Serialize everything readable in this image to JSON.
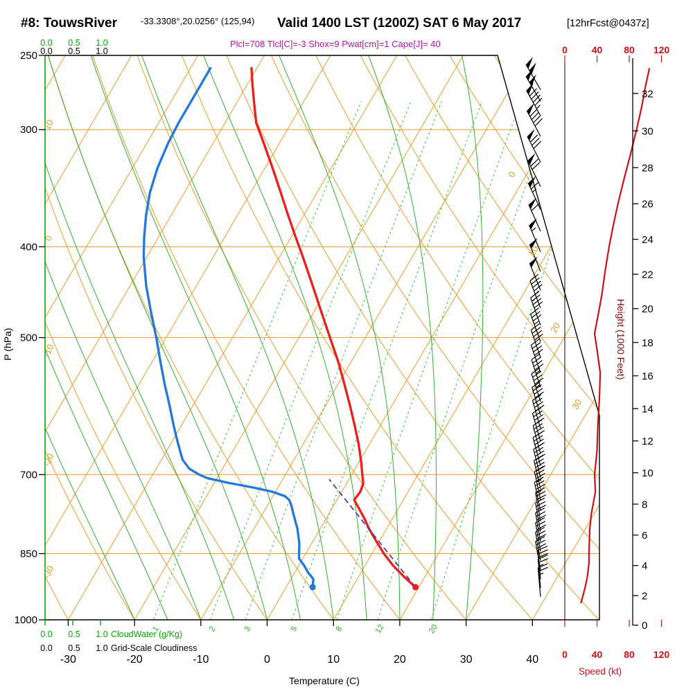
{
  "header": {
    "station_id": "#8: TouwsRiver",
    "coordinates": "-33.3308°,20.0256° (125,94)",
    "valid_time": "Valid 1400 LST (1200Z) SAT 6 May 2017",
    "forecast_tag": "[12hrFcst@0437z]",
    "indices_line": "Plcl=708 Tlcl[C]=-3 Shox=9 Pwat[cm]=1 Cape[J]= 40"
  },
  "axis_labels": {
    "pressure": "P (hPa)",
    "temperature": "Temperature (C)",
    "height": "Height (1000 Feet)",
    "speed": "Speed (kt)",
    "cloudwater": "CloudWater (g/Kg)",
    "cloudiness": "Grid-Scale Cloudiness"
  },
  "chart_data": {
    "type": "line",
    "variant": "skew-t log-p thermodynamic sounding with wind barbs and speed profile",
    "pressure_axis": {
      "label": "P (hPa)",
      "scale": "log",
      "range": [
        250,
        1000
      ],
      "ticks": [
        250,
        300,
        400,
        500,
        700,
        850,
        1000
      ]
    },
    "temperature_axis": {
      "label": "Temperature (C)",
      "skewed": true,
      "ticks": [
        -30,
        -20,
        -10,
        0,
        10,
        20,
        30,
        40
      ]
    },
    "height_axis": {
      "label": "Height (1000 Feet)",
      "ticks": [
        0,
        2,
        4,
        6,
        8,
        10,
        12,
        14,
        16,
        18,
        20,
        22,
        24,
        26,
        28,
        30,
        32
      ]
    },
    "speed_axis": {
      "label": "Speed (kt)",
      "ticks": [
        0,
        40,
        80,
        120
      ]
    },
    "cloud_scales": {
      "ticks": [
        "0.0",
        "0.5",
        "1.0"
      ],
      "cloudwater_label": "CloudWater (g/Kg)",
      "cloudiness_label": "Grid-Scale Cloudiness",
      "cloudwater_value_profile": 0
    },
    "mixing_ratio_lines_g_per_kg": [
      1,
      2,
      3,
      5,
      8,
      12,
      20
    ],
    "dry_adiabat_edge_labels_C": [
      10,
      0,
      -10,
      -20,
      -30
    ],
    "isotherm_edge_labels_C": [
      0,
      10,
      20,
      30
    ],
    "indices": {
      "Plcl_hPa": 708,
      "Tlcl_C": -3,
      "Showalter": 9,
      "Pwat_cm": 1,
      "Cape_J": 40
    },
    "temperature_profile_p_T": [
      [
        923,
        19.5
      ],
      [
        900,
        16.9
      ],
      [
        875,
        14.2
      ],
      [
        850,
        11.8
      ],
      [
        825,
        9.6
      ],
      [
        800,
        7.4
      ],
      [
        780,
        5.8
      ],
      [
        760,
        4.0
      ],
      [
        745,
        2.6
      ],
      [
        730,
        2.8
      ],
      [
        715,
        2.5
      ],
      [
        700,
        1.6
      ],
      [
        680,
        0.4
      ],
      [
        650,
        -1.6
      ],
      [
        620,
        -3.9
      ],
      [
        590,
        -6.4
      ],
      [
        560,
        -9.1
      ],
      [
        530,
        -12.0
      ],
      [
        500,
        -15.3
      ],
      [
        470,
        -18.8
      ],
      [
        440,
        -22.5
      ],
      [
        410,
        -26.5
      ],
      [
        390,
        -29.4
      ],
      [
        370,
        -32.4
      ],
      [
        350,
        -35.5
      ],
      [
        330,
        -38.8
      ],
      [
        310,
        -42.4
      ],
      [
        295,
        -45.3
      ],
      [
        280,
        -47.5
      ],
      [
        268,
        -49.3
      ],
      [
        258,
        -50.8
      ]
    ],
    "dewpoint_profile_p_T": [
      [
        923,
        4.0
      ],
      [
        905,
        3.4
      ],
      [
        890,
        2.0
      ],
      [
        875,
        0.8
      ],
      [
        860,
        -0.6
      ],
      [
        845,
        -1.2
      ],
      [
        830,
        -1.8
      ],
      [
        815,
        -2.6
      ],
      [
        800,
        -3.4
      ],
      [
        785,
        -4.4
      ],
      [
        770,
        -5.4
      ],
      [
        755,
        -6.4
      ],
      [
        745,
        -7.2
      ],
      [
        738,
        -8.2
      ],
      [
        730,
        -10.5
      ],
      [
        722,
        -14.0
      ],
      [
        714,
        -18.0
      ],
      [
        706,
        -21.5
      ],
      [
        700,
        -23.0
      ],
      [
        690,
        -25.0
      ],
      [
        675,
        -26.8
      ],
      [
        660,
        -28.0
      ],
      [
        640,
        -29.6
      ],
      [
        620,
        -31.2
      ],
      [
        590,
        -33.6
      ],
      [
        560,
        -36.2
      ],
      [
        530,
        -38.8
      ],
      [
        500,
        -41.5
      ],
      [
        470,
        -44.5
      ],
      [
        440,
        -47.6
      ],
      [
        410,
        -50.5
      ],
      [
        390,
        -52.2
      ],
      [
        370,
        -53.8
      ],
      [
        350,
        -55.2
      ],
      [
        330,
        -56.2
      ],
      [
        310,
        -56.8
      ],
      [
        295,
        -57.0
      ],
      [
        280,
        -57.0
      ],
      [
        268,
        -57.0
      ],
      [
        258,
        -57.0
      ]
    ],
    "parcel_path": {
      "p_start": 923,
      "t_start": 19.5,
      "p_lcl": 708,
      "t_lcl": -3
    },
    "wind_speed_profile_p_kt": [
      [
        960,
        20
      ],
      [
        925,
        25
      ],
      [
        900,
        28
      ],
      [
        870,
        30
      ],
      [
        850,
        30
      ],
      [
        800,
        31
      ],
      [
        770,
        33
      ],
      [
        730,
        38
      ],
      [
        700,
        37
      ],
      [
        660,
        40
      ],
      [
        620,
        41
      ],
      [
        580,
        43
      ],
      [
        545,
        44
      ],
      [
        515,
        40
      ],
      [
        495,
        37
      ],
      [
        470,
        42
      ],
      [
        450,
        46
      ],
      [
        425,
        50
      ],
      [
        400,
        55
      ],
      [
        380,
        60
      ],
      [
        360,
        66
      ],
      [
        340,
        73
      ],
      [
        320,
        81
      ],
      [
        300,
        89
      ],
      [
        285,
        95
      ],
      [
        270,
        100
      ],
      [
        258,
        105
      ]
    ],
    "wind_barbs_p_kt_dir": [
      [
        945,
        25,
        355
      ],
      [
        925,
        25,
        355
      ],
      [
        905,
        28,
        355
      ],
      [
        885,
        30,
        350
      ],
      [
        865,
        30,
        350
      ],
      [
        845,
        30,
        350
      ],
      [
        825,
        30,
        350
      ],
      [
        805,
        30,
        350
      ],
      [
        785,
        32,
        350
      ],
      [
        765,
        34,
        348
      ],
      [
        745,
        36,
        348
      ],
      [
        725,
        38,
        347
      ],
      [
        705,
        38,
        346
      ],
      [
        685,
        40,
        345
      ],
      [
        665,
        40,
        345
      ],
      [
        645,
        40,
        344
      ],
      [
        625,
        42,
        344
      ],
      [
        605,
        42,
        343
      ],
      [
        585,
        44,
        342
      ],
      [
        565,
        44,
        342
      ],
      [
        545,
        42,
        341
      ],
      [
        525,
        40,
        341
      ],
      [
        505,
        37,
        340
      ],
      [
        485,
        40,
        340
      ],
      [
        465,
        44,
        339
      ],
      [
        445,
        48,
        338
      ],
      [
        425,
        52,
        338
      ],
      [
        405,
        55,
        337
      ],
      [
        385,
        60,
        336
      ],
      [
        365,
        65,
        335
      ],
      [
        345,
        72,
        334
      ],
      [
        325,
        80,
        333
      ],
      [
        305,
        88,
        332
      ],
      [
        290,
        94,
        331
      ],
      [
        280,
        98,
        330
      ],
      [
        272,
        102,
        330
      ]
    ],
    "colors": {
      "grid_orange": "#E9A33C",
      "moist_green": "#2FAF2F",
      "mixratio_green": "#55C455",
      "axis_green": "#00AC00",
      "temperature_red": "#E8221E",
      "dewpoint_blue": "#2779D8",
      "speed_red": "#CB1016",
      "parcel_violet": "#4A3C90",
      "header_magenta": "#B412B4",
      "height_maroon": "#8B0000"
    }
  }
}
